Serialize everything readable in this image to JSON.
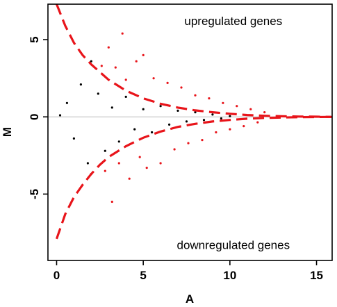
{
  "chart_data": {
    "type": "scatter",
    "title": "",
    "xlabel": "A",
    "ylabel": "M",
    "xlim": [
      -0.5,
      15.9
    ],
    "ylim": [
      -9.3,
      7.3
    ],
    "x_ticks": [
      {
        "value": 0,
        "label": "0"
      },
      {
        "value": 5,
        "label": "5"
      },
      {
        "value": 10,
        "label": "10"
      },
      {
        "value": 15,
        "label": "15"
      }
    ],
    "y_ticks": [
      {
        "value": 5,
        "label": "5"
      },
      {
        "value": 0,
        "label": "0"
      },
      {
        "value": -5,
        "label": "-5"
      }
    ],
    "grid": false,
    "legend": "none",
    "annotations": [
      {
        "text": "upregulated genes",
        "x": 10.2,
        "y": 5.95
      },
      {
        "text": "downregulated genes",
        "x": 10.2,
        "y": -8.55
      }
    ],
    "reference_line": {
      "y": 0,
      "color": "#bbbbbb"
    },
    "threshold_curves": {
      "style": "dashed",
      "color": "#e8141a",
      "upper": [
        [
          0,
          7.3
        ],
        [
          0.5,
          5.9
        ],
        [
          1,
          4.8
        ],
        [
          1.5,
          4.0
        ],
        [
          2,
          3.4
        ],
        [
          2.5,
          2.9
        ],
        [
          3,
          2.4
        ],
        [
          4,
          1.7
        ],
        [
          5,
          1.2
        ],
        [
          6,
          0.85
        ],
        [
          7,
          0.6
        ],
        [
          8,
          0.42
        ],
        [
          9,
          0.3
        ],
        [
          10,
          0.2
        ],
        [
          11,
          0.12
        ],
        [
          12,
          0.07
        ],
        [
          13,
          0.04
        ],
        [
          14,
          0.02
        ],
        [
          15,
          0.01
        ],
        [
          15.9,
          0.0
        ]
      ],
      "lower": [
        [
          0,
          -7.9
        ],
        [
          0.5,
          -6.3
        ],
        [
          1,
          -5.2
        ],
        [
          1.5,
          -4.4
        ],
        [
          2,
          -3.7
        ],
        [
          2.5,
          -3.1
        ],
        [
          3,
          -2.6
        ],
        [
          4,
          -1.9
        ],
        [
          5,
          -1.35
        ],
        [
          6,
          -0.95
        ],
        [
          7,
          -0.65
        ],
        [
          8,
          -0.45
        ],
        [
          9,
          -0.3
        ],
        [
          10,
          -0.2
        ],
        [
          11,
          -0.12
        ],
        [
          12,
          -0.07
        ],
        [
          13,
          -0.04
        ],
        [
          14,
          -0.02
        ],
        [
          15,
          -0.01
        ],
        [
          15.9,
          0.0
        ]
      ]
    },
    "series": [
      {
        "name": "",
        "color": "#000000",
        "points": [
          [
            0.2,
            0.1
          ],
          [
            0.6,
            0.9
          ],
          [
            1.0,
            -1.4
          ],
          [
            1.4,
            2.1
          ],
          [
            1.8,
            -3.0
          ],
          [
            2.0,
            3.6
          ],
          [
            2.0,
            -3.7
          ],
          [
            2.4,
            1.5
          ],
          [
            2.8,
            -2.2
          ],
          [
            3.2,
            0.6
          ],
          [
            3.6,
            -1.6
          ],
          [
            4.0,
            1.3
          ],
          [
            4.5,
            -0.8
          ],
          [
            5.0,
            0.5
          ],
          [
            5.5,
            -1.0
          ],
          [
            6.0,
            0.7
          ],
          [
            6.5,
            -0.5
          ],
          [
            7.0,
            0.4
          ],
          [
            7.5,
            -0.3
          ],
          [
            8.0,
            0.3
          ],
          [
            8.5,
            -0.2
          ],
          [
            9.0,
            0.15
          ],
          [
            9.5,
            -0.1
          ],
          [
            10.0,
            0.05
          ]
        ]
      },
      {
        "name": "",
        "color": "#e8141a",
        "points": [
          [
            2.6,
            3.3
          ],
          [
            2.8,
            -3.5
          ],
          [
            3.0,
            4.5
          ],
          [
            3.2,
            -5.5
          ],
          [
            3.4,
            3.2
          ],
          [
            3.6,
            -3.0
          ],
          [
            3.8,
            5.4
          ],
          [
            4.0,
            2.4
          ],
          [
            4.2,
            -4.0
          ],
          [
            4.6,
            3.6
          ],
          [
            4.8,
            -2.6
          ],
          [
            5.0,
            4.0
          ],
          [
            5.2,
            -3.3
          ],
          [
            5.6,
            2.5
          ],
          [
            6.0,
            -3.0
          ],
          [
            6.4,
            2.2
          ],
          [
            6.8,
            -2.1
          ],
          [
            7.2,
            1.9
          ],
          [
            7.6,
            -1.7
          ],
          [
            8.0,
            1.4
          ],
          [
            8.4,
            -1.5
          ],
          [
            8.8,
            1.2
          ],
          [
            9.2,
            -1.0
          ],
          [
            9.6,
            0.9
          ],
          [
            10.0,
            -0.8
          ],
          [
            10.4,
            0.7
          ],
          [
            10.8,
            -0.6
          ],
          [
            11.2,
            0.5
          ],
          [
            11.6,
            -0.35
          ],
          [
            12.0,
            0.3
          ]
        ]
      }
    ]
  }
}
